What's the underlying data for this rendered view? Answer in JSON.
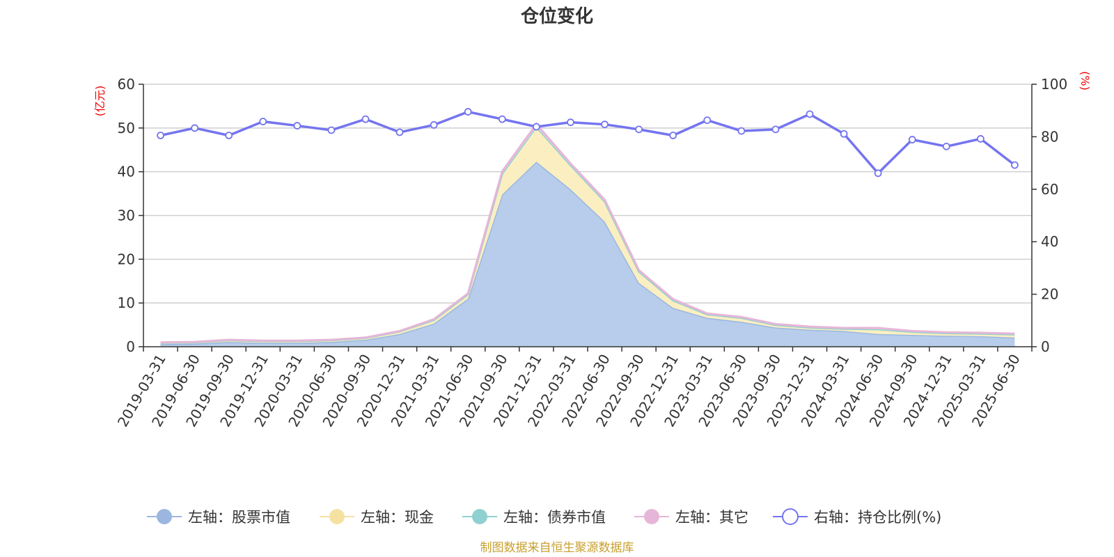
{
  "chart_data": {
    "type": "area",
    "title": "仓位变化",
    "categories": [
      "2019-03-31",
      "2019-06-30",
      "2019-09-30",
      "2019-12-31",
      "2020-03-31",
      "2020-06-30",
      "2020-09-30",
      "2020-12-31",
      "2021-03-31",
      "2021-06-30",
      "2021-09-30",
      "2021-12-31",
      "2022-03-31",
      "2022-06-30",
      "2022-09-30",
      "2022-12-31",
      "2023-03-31",
      "2023-06-30",
      "2023-09-30",
      "2023-12-31",
      "2024-03-31",
      "2024-06-30",
      "2024-09-30",
      "2024-12-31",
      "2025-03-31",
      "2025-06-30"
    ],
    "left_axis": {
      "unit": "(亿元)",
      "ylim": [
        0,
        60
      ],
      "ticks": [
        "0",
        "10",
        "20",
        "30",
        "40",
        "50",
        "60"
      ]
    },
    "right_axis": {
      "unit": "(%)",
      "ylim": [
        0,
        100
      ],
      "ticks": [
        "0",
        "20",
        "40",
        "60",
        "80",
        "100"
      ]
    },
    "grid": true,
    "legend_position": "bottom",
    "series": [
      {
        "name": "左轴：股票市值",
        "axis": "left",
        "kind": "stacked-area",
        "color": "#9bb7e0",
        "fill": "#b7cdeb",
        "values": [
          0.6,
          0.7,
          1.1,
          0.9,
          0.9,
          1.1,
          1.6,
          2.9,
          5.3,
          11.0,
          34.8,
          42.3,
          36.0,
          28.6,
          14.6,
          8.9,
          6.6,
          5.7,
          4.4,
          3.9,
          3.6,
          2.9,
          2.7,
          2.5,
          2.4,
          2.1
        ]
      },
      {
        "name": "左轴：现金",
        "axis": "left",
        "kind": "stacked-area",
        "color": "#f5e2a3",
        "fill": "#fbefc1",
        "values": [
          0.3,
          0.3,
          0.4,
          0.4,
          0.4,
          0.4,
          0.4,
          0.6,
          0.8,
          1.0,
          4.8,
          8.0,
          5.5,
          4.6,
          2.6,
          1.7,
          0.8,
          0.9,
          0.6,
          0.5,
          0.5,
          1.1,
          0.7,
          0.6,
          0.6,
          0.7
        ]
      },
      {
        "name": "左轴：债券市值",
        "axis": "left",
        "kind": "stacked-area",
        "color": "#8fd1d0",
        "fill": "#a9dcdb",
        "values": [
          0,
          0,
          0,
          0,
          0,
          0,
          0,
          0,
          0,
          0,
          0,
          0,
          0,
          0,
          0,
          0,
          0,
          0,
          0,
          0,
          0,
          0,
          0,
          0,
          0,
          0
        ]
      },
      {
        "name": "左轴：其它",
        "axis": "left",
        "kind": "stacked-area",
        "color": "#e6b6d8",
        "fill": "#f2d2e8",
        "values": [
          0.1,
          0.1,
          0.1,
          0.1,
          0.1,
          0.1,
          0.1,
          0.1,
          0.2,
          0.2,
          0.5,
          0.6,
          0.4,
          0.4,
          0.3,
          0.3,
          0.2,
          0.2,
          0.2,
          0.2,
          0.2,
          0.3,
          0.2,
          0.2,
          0.2,
          0.2
        ]
      },
      {
        "name": "右轴：持仓比例(%)",
        "axis": "right",
        "kind": "line",
        "color": "#7474f0",
        "values": [
          80.5,
          83.3,
          80.5,
          85.8,
          84.2,
          82.5,
          86.7,
          81.7,
          84.5,
          89.5,
          86.7,
          83.8,
          85.5,
          84.7,
          82.8,
          80.5,
          86.3,
          82.2,
          82.8,
          88.6,
          81.1,
          66.1,
          78.9,
          76.3,
          79.2,
          69.2
        ]
      }
    ]
  },
  "footer": "制图数据来自恒生聚源数据库"
}
